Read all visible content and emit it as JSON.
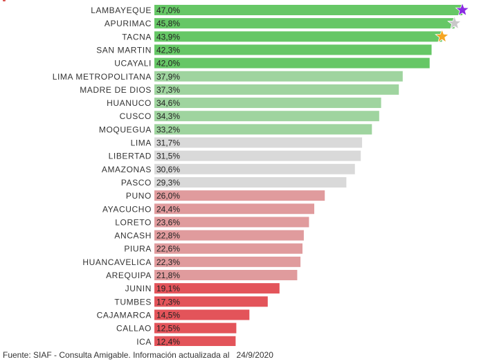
{
  "colors": {
    "top": "#66c766",
    "upper": "#9fd49f",
    "middle": "#d9d9d9",
    "lower": "#e09b9d",
    "bottom": "#e3545a",
    "star_gold": "#f5a623",
    "star_silver": "#c8c8c8",
    "star_purple": "#8a2be2"
  },
  "chart_data": {
    "type": "bar",
    "orientation": "horizontal",
    "categories": [
      "LAMBAYEQUE",
      "APURIMAC",
      "TACNA",
      "SAN MARTIN",
      "UCAYALI",
      "LIMA METROPOLITANA",
      "MADRE DE DIOS",
      "HUANUCO",
      "CUSCO",
      "MOQUEGUA",
      "LIMA",
      "LIBERTAD",
      "AMAZONAS",
      "PASCO",
      "PUNO",
      "AYACUCHO",
      "LORETO",
      "ANCASH",
      "PIURA",
      "HUANCAVELICA",
      "AREQUIPA",
      "JUNIN",
      "TUMBES",
      "CAJAMARCA",
      "CALLAO",
      "ICA"
    ],
    "values": [
      47.0,
      45.8,
      43.9,
      42.3,
      42.0,
      37.9,
      37.3,
      34.6,
      34.3,
      33.2,
      31.7,
      31.5,
      30.6,
      29.3,
      26.0,
      24.4,
      23.6,
      22.8,
      22.6,
      22.3,
      21.8,
      19.1,
      17.3,
      14.5,
      12.5,
      12.4
    ],
    "value_labels": [
      "47,0%",
      "45,8%",
      "43,9%",
      "42,3%",
      "42,0%",
      "37,9%",
      "37,3%",
      "34,6%",
      "34,3%",
      "33,2%",
      "31,7%",
      "31,5%",
      "30,6%",
      "29,3%",
      "26,0%",
      "24,4%",
      "23,6%",
      "22,8%",
      "22,6%",
      "22,3%",
      "21,8%",
      "19,1%",
      "17,3%",
      "14,5%",
      "12,5%",
      "12,4%"
    ],
    "groups": [
      "top",
      "top",
      "top",
      "top",
      "top",
      "upper",
      "upper",
      "upper",
      "upper",
      "upper",
      "middle",
      "middle",
      "middle",
      "middle",
      "lower",
      "lower",
      "lower",
      "lower",
      "lower",
      "lower",
      "lower",
      "bottom",
      "bottom",
      "bottom",
      "bottom",
      "bottom"
    ],
    "markers": [
      {
        "index": 0,
        "icon": "purple-star-icon",
        "color": "#8a2be2"
      },
      {
        "index": 1,
        "icon": "silver-star-icon",
        "color": "#c8c8c8"
      },
      {
        "index": 2,
        "icon": "gold-star-icon",
        "color": "#f5a623"
      }
    ],
    "xlim": [
      0,
      47.0
    ],
    "unit": "%",
    "grid": false,
    "legend": "none"
  },
  "footer": {
    "source": "Fuente: SIAF - Consulta Amigable. Información actualizada al",
    "date": "24/9/2020"
  }
}
